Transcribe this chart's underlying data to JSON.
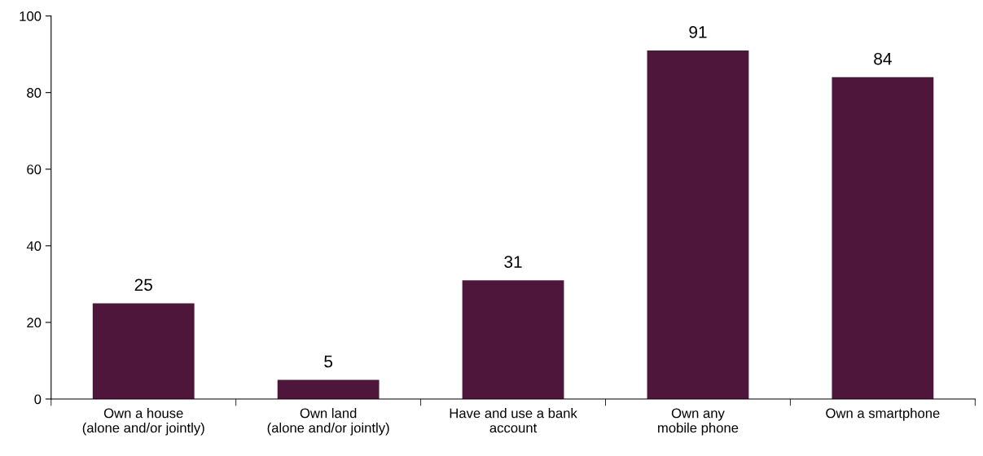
{
  "chart_data": {
    "type": "bar",
    "categories": [
      "Own a house\n(alone and/or jointly)",
      "Own land\n(alone and/or jointly)",
      "Have and use a bank\naccount",
      "Own any\nmobile phone",
      "Own a smartphone"
    ],
    "values": [
      25,
      5,
      31,
      91,
      84
    ],
    "color": "#4f163b",
    "ylim": [
      0,
      100
    ],
    "yticks": [
      0,
      20,
      40,
      60,
      80,
      100
    ],
    "data_labels": true,
    "grid": false
  }
}
